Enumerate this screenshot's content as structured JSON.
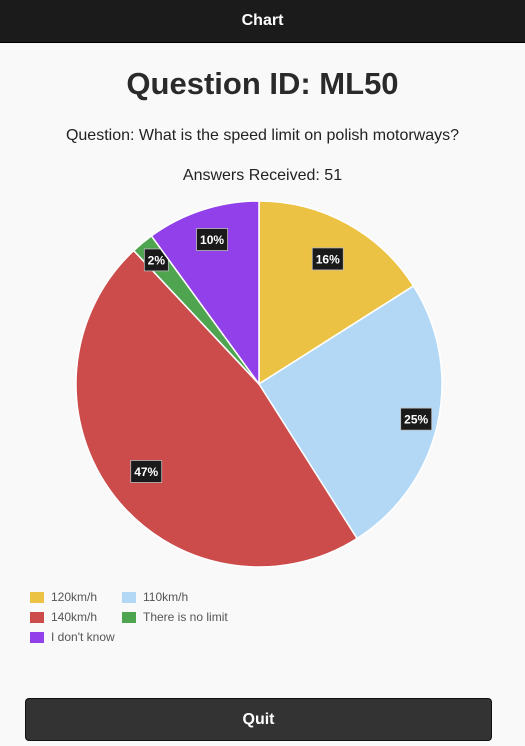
{
  "header": {
    "title": "Chart"
  },
  "main": {
    "heading": "Question ID: ML50",
    "question": "Question: What is the speed limit on polish motorways?",
    "answers_received": "Answers Received: 51"
  },
  "chart_data": {
    "type": "pie",
    "categories": [
      "120km/h",
      "110km/h",
      "140km/h",
      "There is no limit",
      "I don't know"
    ],
    "values": [
      16,
      25,
      47,
      2,
      10
    ],
    "value_labels": [
      "16%",
      "25%",
      "47%",
      "2%",
      "10%"
    ],
    "colors": [
      "#ecc244",
      "#b3d8f5",
      "#cc4b4b",
      "#4fa44f",
      "#9140ea"
    ],
    "legend_position": "bottom-left"
  },
  "footer": {
    "quit_label": "Quit"
  }
}
